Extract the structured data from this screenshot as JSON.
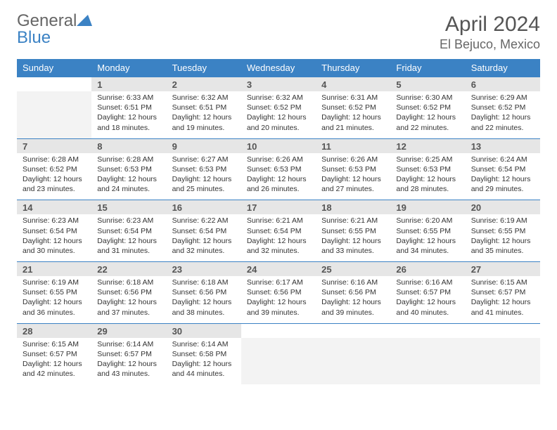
{
  "branding": {
    "logo_part1": "General",
    "logo_part2": "Blue",
    "logo_text_color": "#666666",
    "logo_accent_color": "#3b82c4"
  },
  "header": {
    "month_title": "April 2024",
    "location": "El Bejuco, Mexico",
    "title_color": "#555555",
    "location_color": "#666666"
  },
  "colors": {
    "header_bg": "#3b82c4",
    "header_text": "#ffffff",
    "daynum_bg": "#e6e6e6",
    "daynum_text": "#555555",
    "cell_border_top": "#3b82c4",
    "empty_cell_bg": "#f3f3f3",
    "body_text": "#333333"
  },
  "weekdays": [
    "Sunday",
    "Monday",
    "Tuesday",
    "Wednesday",
    "Thursday",
    "Friday",
    "Saturday"
  ],
  "weeks": [
    {
      "days": [
        {
          "blank": true
        },
        {
          "num": "1",
          "sunrise": "Sunrise: 6:33 AM",
          "sunset": "Sunset: 6:51 PM",
          "daylight": "Daylight: 12 hours and 18 minutes."
        },
        {
          "num": "2",
          "sunrise": "Sunrise: 6:32 AM",
          "sunset": "Sunset: 6:51 PM",
          "daylight": "Daylight: 12 hours and 19 minutes."
        },
        {
          "num": "3",
          "sunrise": "Sunrise: 6:32 AM",
          "sunset": "Sunset: 6:52 PM",
          "daylight": "Daylight: 12 hours and 20 minutes."
        },
        {
          "num": "4",
          "sunrise": "Sunrise: 6:31 AM",
          "sunset": "Sunset: 6:52 PM",
          "daylight": "Daylight: 12 hours and 21 minutes."
        },
        {
          "num": "5",
          "sunrise": "Sunrise: 6:30 AM",
          "sunset": "Sunset: 6:52 PM",
          "daylight": "Daylight: 12 hours and 22 minutes."
        },
        {
          "num": "6",
          "sunrise": "Sunrise: 6:29 AM",
          "sunset": "Sunset: 6:52 PM",
          "daylight": "Daylight: 12 hours and 22 minutes."
        }
      ]
    },
    {
      "days": [
        {
          "num": "7",
          "sunrise": "Sunrise: 6:28 AM",
          "sunset": "Sunset: 6:52 PM",
          "daylight": "Daylight: 12 hours and 23 minutes."
        },
        {
          "num": "8",
          "sunrise": "Sunrise: 6:28 AM",
          "sunset": "Sunset: 6:53 PM",
          "daylight": "Daylight: 12 hours and 24 minutes."
        },
        {
          "num": "9",
          "sunrise": "Sunrise: 6:27 AM",
          "sunset": "Sunset: 6:53 PM",
          "daylight": "Daylight: 12 hours and 25 minutes."
        },
        {
          "num": "10",
          "sunrise": "Sunrise: 6:26 AM",
          "sunset": "Sunset: 6:53 PM",
          "daylight": "Daylight: 12 hours and 26 minutes."
        },
        {
          "num": "11",
          "sunrise": "Sunrise: 6:26 AM",
          "sunset": "Sunset: 6:53 PM",
          "daylight": "Daylight: 12 hours and 27 minutes."
        },
        {
          "num": "12",
          "sunrise": "Sunrise: 6:25 AM",
          "sunset": "Sunset: 6:53 PM",
          "daylight": "Daylight: 12 hours and 28 minutes."
        },
        {
          "num": "13",
          "sunrise": "Sunrise: 6:24 AM",
          "sunset": "Sunset: 6:54 PM",
          "daylight": "Daylight: 12 hours and 29 minutes."
        }
      ]
    },
    {
      "days": [
        {
          "num": "14",
          "sunrise": "Sunrise: 6:23 AM",
          "sunset": "Sunset: 6:54 PM",
          "daylight": "Daylight: 12 hours and 30 minutes."
        },
        {
          "num": "15",
          "sunrise": "Sunrise: 6:23 AM",
          "sunset": "Sunset: 6:54 PM",
          "daylight": "Daylight: 12 hours and 31 minutes."
        },
        {
          "num": "16",
          "sunrise": "Sunrise: 6:22 AM",
          "sunset": "Sunset: 6:54 PM",
          "daylight": "Daylight: 12 hours and 32 minutes."
        },
        {
          "num": "17",
          "sunrise": "Sunrise: 6:21 AM",
          "sunset": "Sunset: 6:54 PM",
          "daylight": "Daylight: 12 hours and 32 minutes."
        },
        {
          "num": "18",
          "sunrise": "Sunrise: 6:21 AM",
          "sunset": "Sunset: 6:55 PM",
          "daylight": "Daylight: 12 hours and 33 minutes."
        },
        {
          "num": "19",
          "sunrise": "Sunrise: 6:20 AM",
          "sunset": "Sunset: 6:55 PM",
          "daylight": "Daylight: 12 hours and 34 minutes."
        },
        {
          "num": "20",
          "sunrise": "Sunrise: 6:19 AM",
          "sunset": "Sunset: 6:55 PM",
          "daylight": "Daylight: 12 hours and 35 minutes."
        }
      ]
    },
    {
      "days": [
        {
          "num": "21",
          "sunrise": "Sunrise: 6:19 AM",
          "sunset": "Sunset: 6:55 PM",
          "daylight": "Daylight: 12 hours and 36 minutes."
        },
        {
          "num": "22",
          "sunrise": "Sunrise: 6:18 AM",
          "sunset": "Sunset: 6:56 PM",
          "daylight": "Daylight: 12 hours and 37 minutes."
        },
        {
          "num": "23",
          "sunrise": "Sunrise: 6:18 AM",
          "sunset": "Sunset: 6:56 PM",
          "daylight": "Daylight: 12 hours and 38 minutes."
        },
        {
          "num": "24",
          "sunrise": "Sunrise: 6:17 AM",
          "sunset": "Sunset: 6:56 PM",
          "daylight": "Daylight: 12 hours and 39 minutes."
        },
        {
          "num": "25",
          "sunrise": "Sunrise: 6:16 AM",
          "sunset": "Sunset: 6:56 PM",
          "daylight": "Daylight: 12 hours and 39 minutes."
        },
        {
          "num": "26",
          "sunrise": "Sunrise: 6:16 AM",
          "sunset": "Sunset: 6:57 PM",
          "daylight": "Daylight: 12 hours and 40 minutes."
        },
        {
          "num": "27",
          "sunrise": "Sunrise: 6:15 AM",
          "sunset": "Sunset: 6:57 PM",
          "daylight": "Daylight: 12 hours and 41 minutes."
        }
      ]
    },
    {
      "days": [
        {
          "num": "28",
          "sunrise": "Sunrise: 6:15 AM",
          "sunset": "Sunset: 6:57 PM",
          "daylight": "Daylight: 12 hours and 42 minutes."
        },
        {
          "num": "29",
          "sunrise": "Sunrise: 6:14 AM",
          "sunset": "Sunset: 6:57 PM",
          "daylight": "Daylight: 12 hours and 43 minutes."
        },
        {
          "num": "30",
          "sunrise": "Sunrise: 6:14 AM",
          "sunset": "Sunset: 6:58 PM",
          "daylight": "Daylight: 12 hours and 44 minutes."
        },
        {
          "blank": true
        },
        {
          "blank": true
        },
        {
          "blank": true
        },
        {
          "blank": true
        }
      ]
    }
  ]
}
